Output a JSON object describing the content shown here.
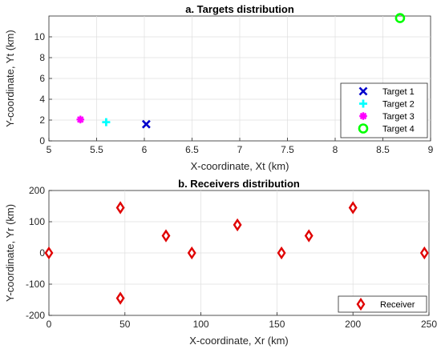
{
  "chart_data": [
    {
      "type": "scatter",
      "title": "a. Targets distribution",
      "xlabel": "X-coordinate, Xt (km)",
      "ylabel": "Y-coordinate, Yt (km)",
      "xlim": [
        5,
        9
      ],
      "ylim": [
        0,
        12
      ],
      "xticks": [
        "5",
        "5.5",
        "6",
        "6.5",
        "7",
        "7.5",
        "8",
        "8.5",
        "9"
      ],
      "yticks": [
        "0",
        "2",
        "4",
        "6",
        "8",
        "10"
      ],
      "grid": true,
      "legend_position": "bottom-right",
      "series": [
        {
          "name": "Target 1",
          "marker": "x",
          "color": "#0000cc",
          "x": [
            6.02
          ],
          "y": [
            1.6
          ]
        },
        {
          "name": "Target 2",
          "marker": "plus",
          "color": "#00ffff",
          "x": [
            5.6
          ],
          "y": [
            1.8
          ]
        },
        {
          "name": "Target 3",
          "marker": "asterisk",
          "color": "#ff00ff",
          "x": [
            5.33
          ],
          "y": [
            2.05
          ]
        },
        {
          "name": "Target 4",
          "marker": "circle",
          "color": "#00ff00",
          "x": [
            8.68
          ],
          "y": [
            11.8
          ]
        }
      ]
    },
    {
      "type": "scatter",
      "title": "b. Receivers distribution",
      "xlabel": "X-coordinate, Xr (km)",
      "ylabel": "Y-coordinate, Yr (km)",
      "xlim": [
        0,
        250
      ],
      "ylim": [
        -200,
        200
      ],
      "xticks": [
        "0",
        "50",
        "100",
        "150",
        "200",
        "250"
      ],
      "yticks": [
        "-200",
        "-100",
        "0",
        "100",
        "200"
      ],
      "grid": true,
      "legend_position": "bottom-right",
      "series": [
        {
          "name": "Receiver",
          "marker": "diamond",
          "color": "#e00000",
          "x": [
            0,
            47,
            47,
            77,
            94,
            124,
            153,
            171,
            200,
            247
          ],
          "y": [
            0,
            145,
            -145,
            55,
            0,
            90,
            0,
            55,
            145,
            0
          ]
        }
      ]
    }
  ]
}
